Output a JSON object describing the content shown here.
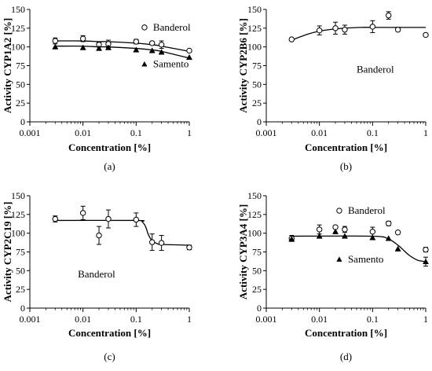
{
  "chart_data": [
    {
      "type": "scatter",
      "panel_label": "(a)",
      "xlabel": "Concentration [%]",
      "ylabel": "Activity CYP1A2 [%]",
      "x_scale": "log",
      "xlim": [
        0.001,
        1
      ],
      "ylim": [
        0,
        150
      ],
      "x_ticks": [
        "0.001",
        "0.01",
        "0.1",
        "1"
      ],
      "y_ticks": [
        "0",
        "25",
        "50",
        "75",
        "100",
        "125",
        "150"
      ],
      "grid": false,
      "series": [
        {
          "name": "Banderol",
          "marker": "open-circle",
          "x": [
            0.003,
            0.01,
            0.02,
            0.03,
            0.1,
            0.2,
            0.3,
            1
          ],
          "y": [
            108,
            111,
            103,
            104,
            107,
            105,
            103,
            95
          ],
          "err": [
            4,
            4,
            3,
            5,
            3,
            2,
            5,
            2
          ],
          "fit": [
            108,
            108,
            107,
            107,
            105,
            103,
            101,
            94
          ]
        },
        {
          "name": "Samento",
          "marker": "filled-triangle",
          "x": [
            0.003,
            0.01,
            0.02,
            0.03,
            0.1,
            0.2,
            0.3,
            1
          ],
          "y": [
            100,
            99,
            98,
            99,
            96,
            95,
            93,
            86
          ],
          "err": [
            0,
            0,
            0,
            0,
            2,
            0,
            0,
            0
          ],
          "fit": [
            101,
            101,
            100,
            100,
            98,
            96,
            94,
            85
          ]
        }
      ]
    },
    {
      "type": "scatter",
      "panel_label": "(b)",
      "xlabel": "Concentration [%]",
      "ylabel": "Activity CYP2B6 [%]",
      "x_scale": "log",
      "xlim": [
        0.001,
        1
      ],
      "ylim": [
        0,
        150
      ],
      "x_ticks": [
        "0.001",
        "0.01",
        "0.1",
        "1"
      ],
      "y_ticks": [
        "0",
        "25",
        "50",
        "75",
        "100",
        "125",
        "150"
      ],
      "grid": false,
      "series": [
        {
          "name": "Banderol",
          "marker": "open-circle",
          "x": [
            0.003,
            0.01,
            0.02,
            0.03,
            0.1,
            0.2,
            0.3,
            1
          ],
          "y": [
            110,
            122,
            125,
            123,
            127,
            142,
            123,
            116
          ],
          "err": [
            2,
            6,
            8,
            6,
            8,
            5,
            2,
            2
          ],
          "fit_x": [
            0.003,
            0.006,
            0.01,
            0.02,
            0.03,
            0.06,
            0.1,
            0.3,
            1
          ],
          "fit": [
            109,
            117,
            121,
            124,
            125,
            126,
            126,
            126,
            126
          ]
        }
      ]
    },
    {
      "type": "scatter",
      "panel_label": "(c)",
      "xlabel": "Concentration [%]",
      "ylabel": "Activity CYP2C19 [%]",
      "x_scale": "log",
      "xlim": [
        0.001,
        1
      ],
      "ylim": [
        0,
        150
      ],
      "x_ticks": [
        "0.001",
        "0.01",
        "0.1",
        "1"
      ],
      "y_ticks": [
        "0",
        "25",
        "50",
        "75",
        "100",
        "125",
        "150"
      ],
      "grid": false,
      "series": [
        {
          "name": "Banderol",
          "marker": "open-circle",
          "x": [
            0.003,
            0.01,
            0.02,
            0.03,
            0.1,
            0.2,
            0.3,
            1
          ],
          "y": [
            119,
            127,
            97,
            119,
            118,
            88,
            87,
            81
          ],
          "err": [
            4,
            9,
            12,
            12,
            9,
            11,
            10,
            3
          ],
          "fit_x": [
            0.003,
            0.1,
            0.13,
            0.15,
            0.17,
            0.2,
            0.25,
            0.3,
            1
          ],
          "fit": [
            117,
            117,
            115,
            109,
            98,
            90,
            86,
            85,
            84
          ]
        }
      ]
    },
    {
      "type": "scatter",
      "panel_label": "(d)",
      "xlabel": "Concentration [%]",
      "ylabel": "Activity CYP3A4 [%]",
      "x_scale": "log",
      "xlim": [
        0.001,
        1
      ],
      "ylim": [
        0,
        150
      ],
      "x_ticks": [
        "0.001",
        "0.01",
        "0.1",
        "1"
      ],
      "y_ticks": [
        "0",
        "25",
        "50",
        "75",
        "100",
        "125",
        "150"
      ],
      "grid": false,
      "series": [
        {
          "name": "Banderol",
          "marker": "open-circle",
          "x": [
            0.003,
            0.01,
            0.02,
            0.03,
            0.1,
            0.2,
            0.3,
            1
          ],
          "y": [
            93,
            105,
            108,
            105,
            102,
            113,
            101,
            78
          ],
          "err": [
            4,
            6,
            0,
            4,
            6,
            3,
            0,
            3
          ],
          "fit": null
        },
        {
          "name": "Samento",
          "marker": "filled-triangle",
          "x": [
            0.003,
            0.01,
            0.02,
            0.03,
            0.1,
            0.2,
            0.3,
            1
          ],
          "y": [
            92,
            96,
            102,
            96,
            94,
            93,
            79,
            62
          ],
          "err": [
            0,
            0,
            0,
            0,
            0,
            0,
            0,
            6
          ],
          "fit_x": [
            0.003,
            0.1,
            0.2,
            0.3,
            0.4,
            0.5,
            0.7,
            1
          ],
          "fit": [
            96,
            96,
            92,
            84,
            76,
            70,
            64,
            62
          ]
        }
      ]
    }
  ]
}
